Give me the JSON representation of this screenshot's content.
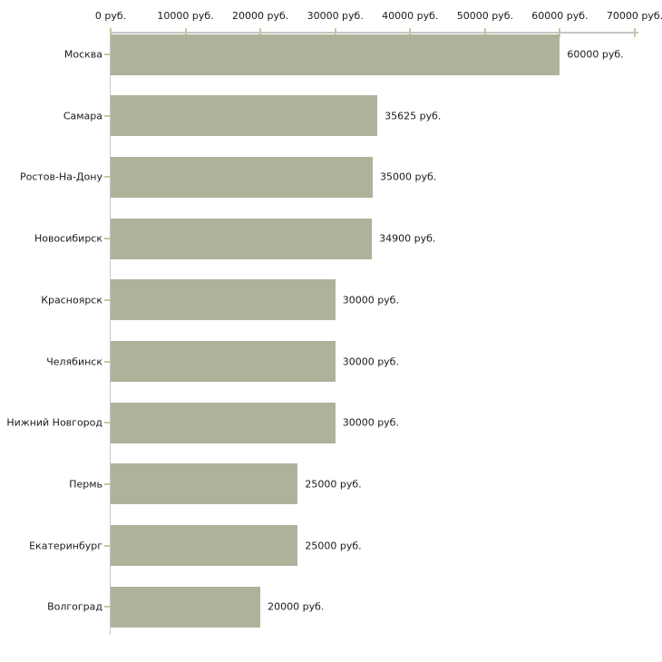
{
  "chart_data": {
    "type": "bar",
    "orientation": "horizontal",
    "title": "",
    "categories": [
      "Москва",
      "Самара",
      "Ростов-На-Дону",
      "Новосибирск",
      "Красноярск",
      "Челябинск",
      "Нижний Новгород",
      "Пермь",
      "Екатеринбург",
      "Волгоград"
    ],
    "values": [
      60000,
      35625,
      35000,
      34900,
      30000,
      30000,
      30000,
      25000,
      25000,
      20000
    ],
    "value_labels": [
      "60000 руб.",
      "35625 руб.",
      "35000 руб.",
      "34900 руб.",
      "30000 руб.",
      "30000 руб.",
      "30000 руб.",
      "25000 руб.",
      "25000 руб.",
      "20000 руб."
    ],
    "unit": "руб.",
    "x_axis": {
      "position": "top",
      "min": 0,
      "max": 70000,
      "ticks": [
        0,
        10000,
        20000,
        30000,
        40000,
        50000,
        60000,
        70000
      ],
      "tick_labels": [
        "0 руб.",
        "10000 руб.",
        "20000 руб.",
        "30000 руб.",
        "40000 руб.",
        "50000 руб.",
        "60000 руб.",
        "70000 руб."
      ]
    },
    "grid": false,
    "legend": false,
    "colors": {
      "bar": "#adb39b",
      "axis_line": "#c6c6c6",
      "tick": "#c9c79e",
      "text": "#1a1a1a",
      "background": "#ffffff"
    }
  }
}
